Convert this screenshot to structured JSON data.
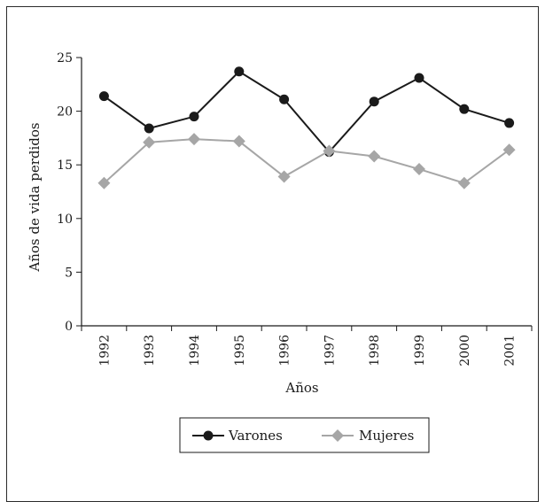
{
  "chart_data": {
    "type": "line",
    "title": "",
    "xlabel": "Años",
    "ylabel": "Años de vida perdidos",
    "categories": [
      "1992",
      "1993",
      "1994",
      "1995",
      "1996",
      "1997",
      "1998",
      "1999",
      "2000",
      "2001"
    ],
    "ylim": [
      0,
      25
    ],
    "yticks": [
      "0",
      "5",
      "10",
      "15",
      "20",
      "25"
    ],
    "grid": false,
    "legend_position": "bottom",
    "series": [
      {
        "name": "Varones",
        "marker": "circle",
        "color": "#1a1a1a",
        "values": [
          21.4,
          18.4,
          19.5,
          23.7,
          21.1,
          16.2,
          20.9,
          23.1,
          20.2,
          18.9
        ]
      },
      {
        "name": "Mujeres",
        "marker": "diamond",
        "color": "#a6a6a6",
        "values": [
          13.3,
          17.1,
          17.4,
          17.2,
          13.9,
          16.3,
          15.8,
          14.6,
          13.3,
          16.4
        ]
      }
    ]
  }
}
